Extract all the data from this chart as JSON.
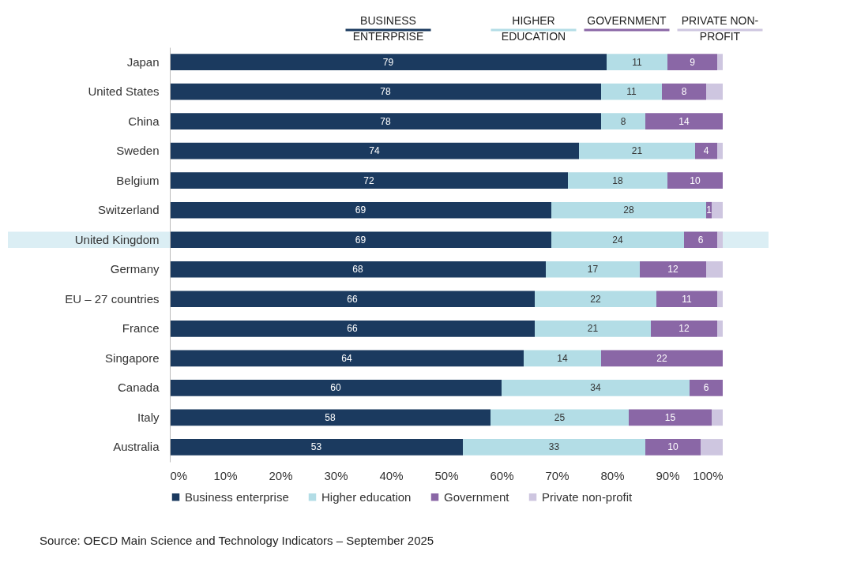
{
  "chart_data": {
    "type": "bar",
    "orientation": "horizontal",
    "stacked": true,
    "categories": [
      "Japan",
      "United States",
      "China",
      "Sweden",
      "Belgium",
      "Switzerland",
      "United Kingdom",
      "Germany",
      "EU – 27 countries",
      "France",
      "Singapore",
      "Canada",
      "Italy",
      "Australia"
    ],
    "series": [
      {
        "name": "Business enterprise",
        "color": "#1b3a5f",
        "values": [
          79,
          78,
          78,
          74,
          72,
          69,
          69,
          68,
          66,
          66,
          64,
          60,
          58,
          53
        ],
        "value_labels": [
          "79",
          "78",
          "78",
          "74",
          "72",
          "69",
          "69",
          "68",
          "66",
          "66",
          "64",
          "60",
          "58",
          "53"
        ]
      },
      {
        "name": "Higher education",
        "color": "#b3dde6",
        "values": [
          11,
          11,
          8,
          21,
          18,
          28,
          24,
          17,
          22,
          21,
          14,
          34,
          25,
          33
        ],
        "value_labels": [
          "11",
          "11",
          "8",
          "21",
          "18",
          "28",
          "24",
          "17",
          "22",
          "21",
          "14",
          "34",
          "25",
          "33"
        ]
      },
      {
        "name": "Government",
        "color": "#8a67a6",
        "values": [
          9,
          8,
          14,
          4,
          10,
          1,
          6,
          12,
          11,
          12,
          22,
          6,
          15,
          10
        ],
        "value_labels": [
          "9",
          "8",
          "14",
          "4",
          "10",
          "1",
          "6",
          "12",
          "11",
          "12",
          "22",
          "6",
          "15",
          "10"
        ]
      },
      {
        "name": "Private non-profit",
        "color": "#cec6e0",
        "values": [
          1,
          3,
          0,
          1,
          0,
          2,
          1,
          3,
          1,
          1,
          0,
          0,
          2,
          4
        ]
      }
    ],
    "xlim": [
      0,
      100
    ],
    "xticks": [
      {
        "value": 0,
        "label": "0%"
      },
      {
        "value": 10,
        "label": "10%"
      },
      {
        "value": 20,
        "label": "20%"
      },
      {
        "value": 30,
        "label": "30%"
      },
      {
        "value": 40,
        "label": "40%"
      },
      {
        "value": 50,
        "label": "50%"
      },
      {
        "value": 60,
        "label": "60%"
      },
      {
        "value": 70,
        "label": "70%"
      },
      {
        "value": 80,
        "label": "80%"
      },
      {
        "value": 90,
        "label": "90%"
      },
      {
        "value": 100,
        "label": "100%"
      }
    ],
    "bands": [
      {
        "axis": "y",
        "from": "United Kingdom",
        "to": "United Kingdom",
        "color": "#dbeef4"
      }
    ],
    "legend": "bottom",
    "grid": false,
    "annotations": [
      "BUSINESS\nENTERPRISE",
      "HIGHER\nEDUCATION",
      "GOVERNMENT",
      "PRIVATE NON-\nPROFIT",
      "Source: OECD Main Science and Technology Indicators – September 2025"
    ]
  }
}
